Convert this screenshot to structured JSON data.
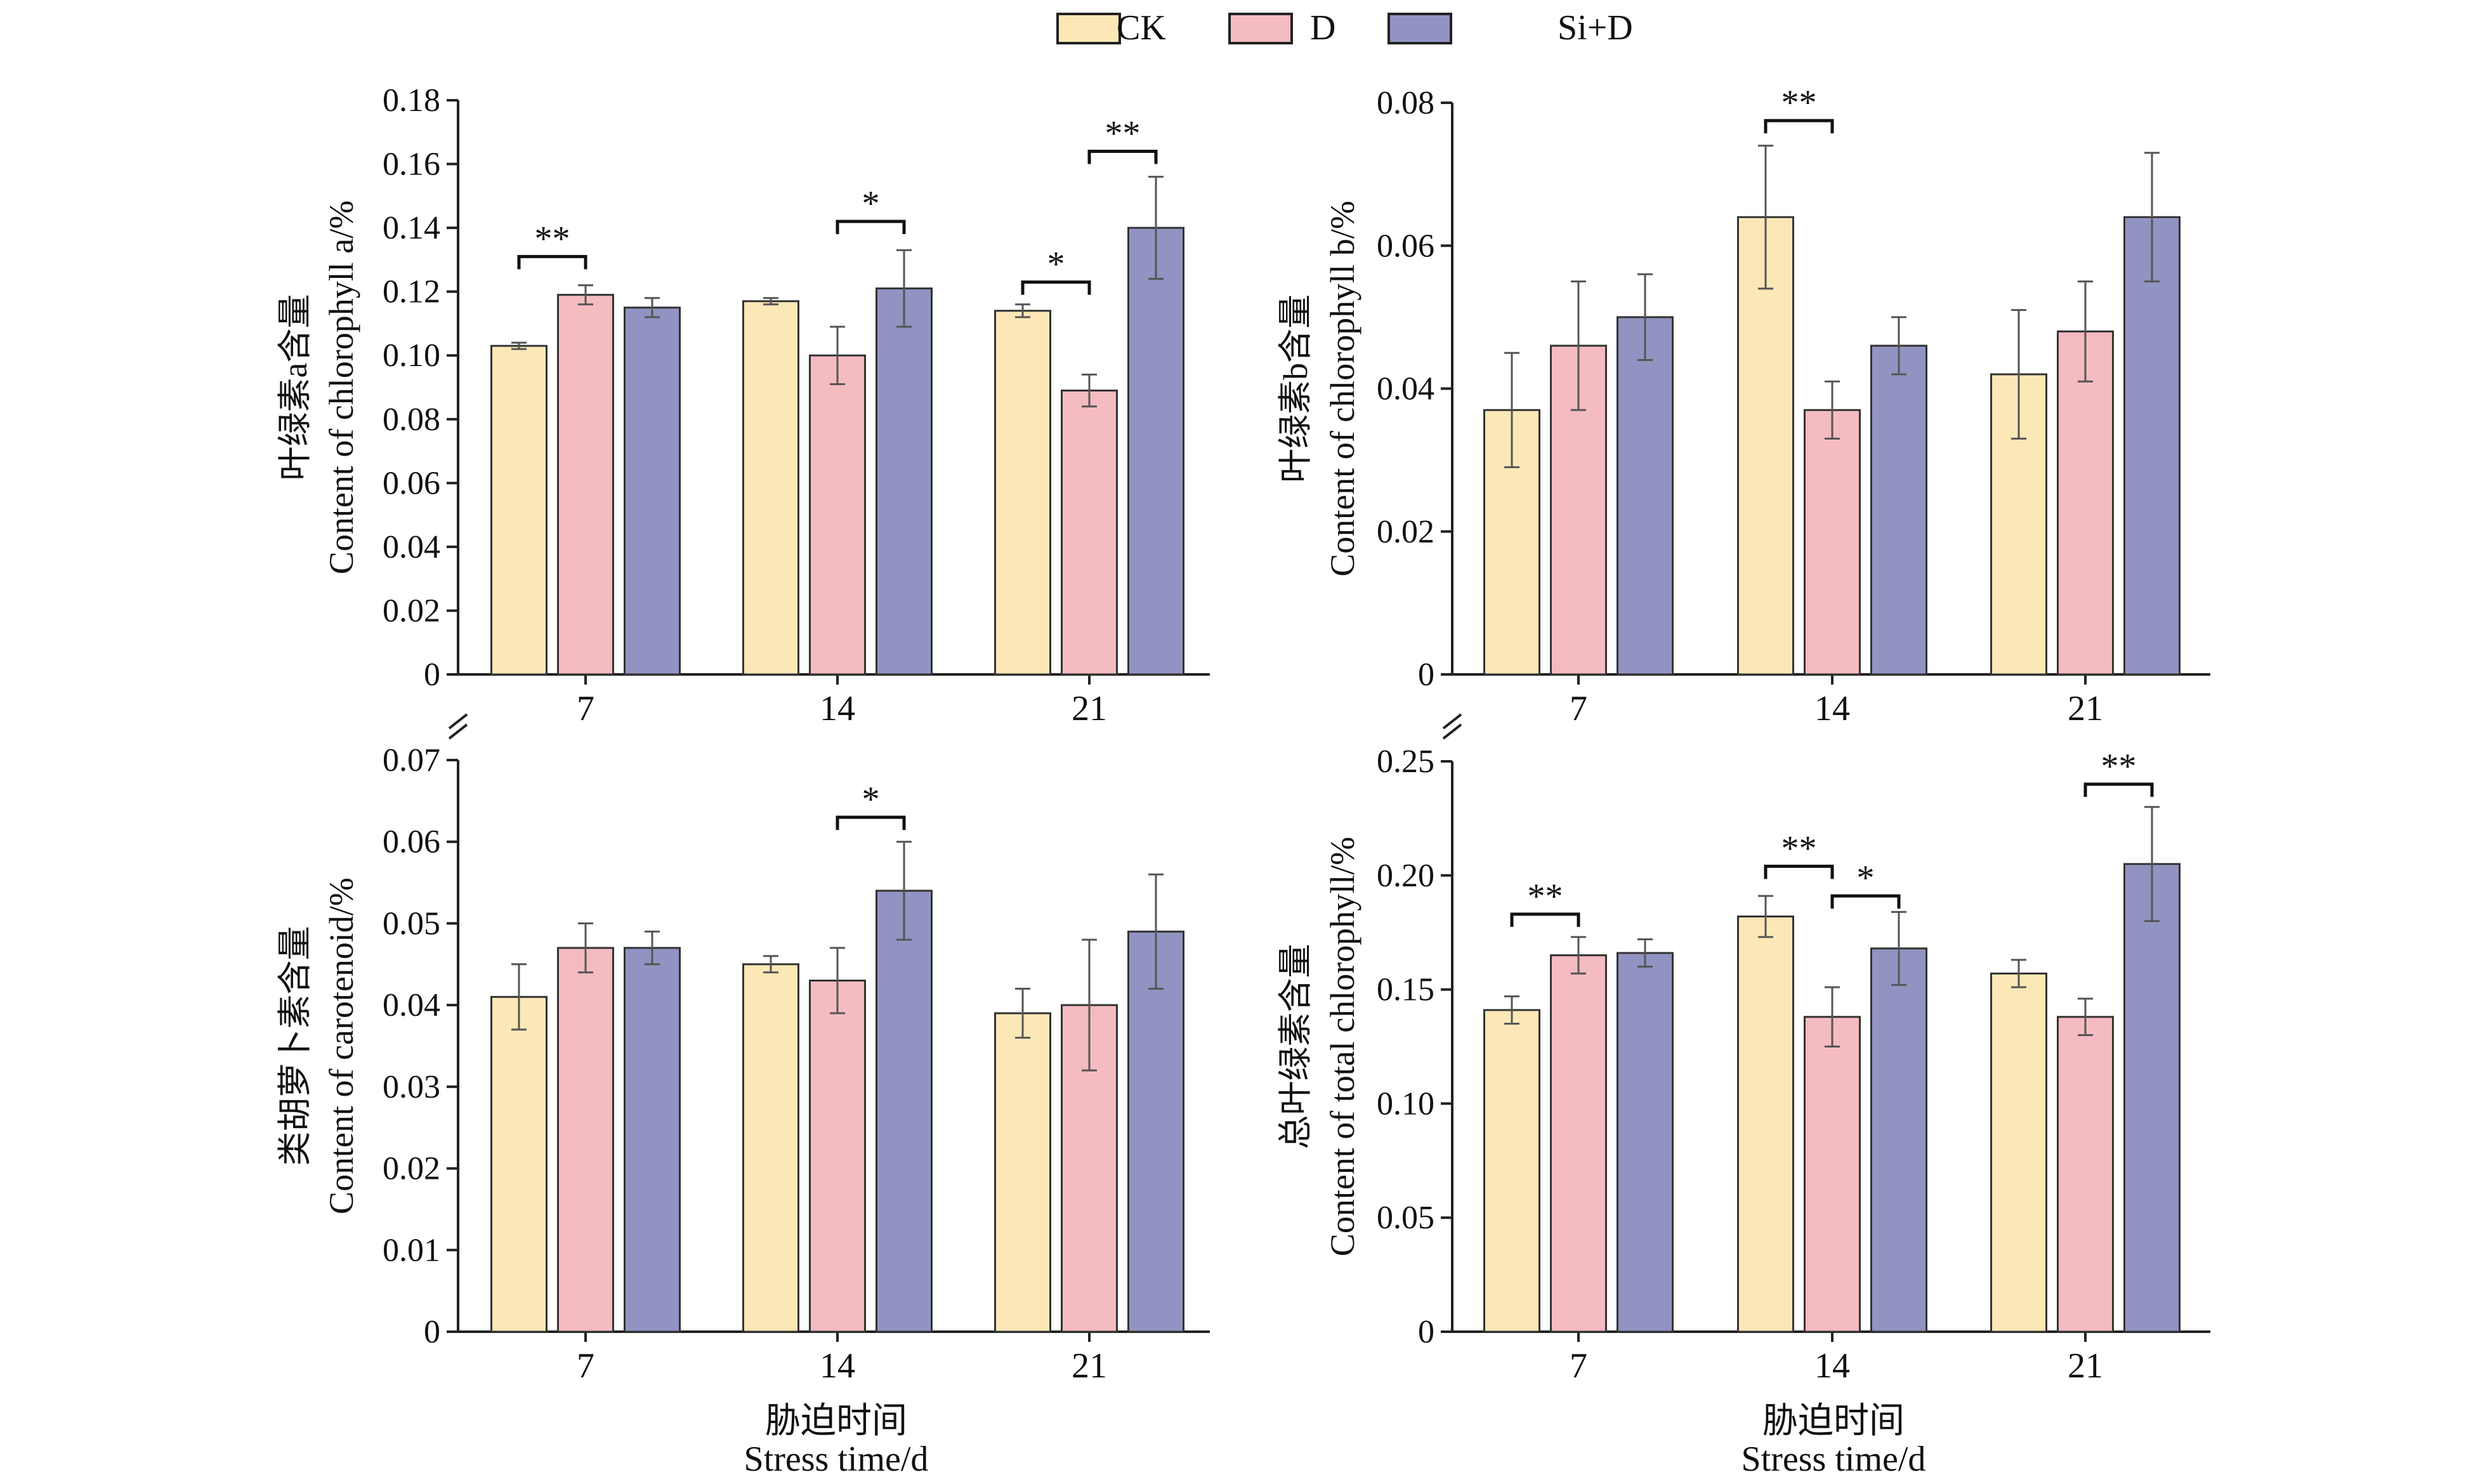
{
  "legend": {
    "items": [
      {
        "label": "CK",
        "color": "#FCE8B7"
      },
      {
        "label": "D",
        "color": "#F4BBC0"
      },
      {
        "label": "Si+D",
        "color": "#9194C2"
      }
    ]
  },
  "x_axis": {
    "label_cn": "胁迫时间",
    "label_en": "Stress time/d"
  },
  "chart_data": [
    {
      "type": "bar",
      "ylabel_cn": "叶绿素a含量",
      "ylabel_en": "Content of chlorophyll a/%",
      "ylim": [
        0,
        0.18
      ],
      "yticks": [
        0,
        0.02,
        0.04,
        0.06,
        0.08,
        0.1,
        0.12,
        0.14,
        0.16,
        0.18
      ],
      "ytick_labels": [
        "0",
        "0.02",
        "0.04",
        "0.06",
        "0.08",
        "0.10",
        "0.12",
        "0.14",
        "0.16",
        "0.18"
      ],
      "categories": [
        "7",
        "14",
        "21"
      ],
      "series": [
        {
          "name": "CK",
          "values": [
            0.103,
            0.117,
            0.114
          ],
          "errors": [
            0.001,
            0.001,
            0.002
          ]
        },
        {
          "name": "D",
          "values": [
            0.119,
            0.1,
            0.089
          ],
          "errors": [
            0.003,
            0.009,
            0.005
          ]
        },
        {
          "name": "Si+D",
          "values": [
            0.115,
            0.121,
            0.14
          ],
          "errors": [
            0.003,
            0.012,
            0.016
          ]
        }
      ],
      "significance": [
        {
          "category": 0,
          "from": 0,
          "to": 1,
          "label": "**",
          "height": 0.131
        },
        {
          "category": 1,
          "from": 1,
          "to": 2,
          "label": "*",
          "height": 0.142
        },
        {
          "category": 2,
          "from": 0,
          "to": 1,
          "label": "*",
          "height": 0.123
        },
        {
          "category": 2,
          "from": 1,
          "to": 2,
          "label": "**",
          "height": 0.164
        }
      ]
    },
    {
      "type": "bar",
      "ylabel_cn": "叶绿素b含量",
      "ylabel_en": "Content of chlorophyll b/%",
      "ylim": [
        0,
        0.08
      ],
      "yticks": [
        0,
        0.02,
        0.04,
        0.06,
        0.08
      ],
      "ytick_labels": [
        "0",
        "0.02",
        "0.04",
        "0.06",
        "0.08"
      ],
      "categories": [
        "7",
        "14",
        "21"
      ],
      "series": [
        {
          "name": "CK",
          "values": [
            0.037,
            0.064,
            0.042
          ],
          "errors": [
            0.008,
            0.01,
            0.009
          ]
        },
        {
          "name": "D",
          "values": [
            0.046,
            0.037,
            0.048
          ],
          "errors": [
            0.009,
            0.004,
            0.007
          ]
        },
        {
          "name": "Si+D",
          "values": [
            0.05,
            0.046,
            0.064
          ],
          "errors": [
            0.006,
            0.004,
            0.009
          ]
        }
      ],
      "significance": [
        {
          "category": 1,
          "from": 0,
          "to": 1,
          "label": "**",
          "height": 0.0775
        }
      ]
    },
    {
      "type": "bar",
      "ylabel_cn": "类胡萝卜素含量",
      "ylabel_en": "Content of carotenoid/%",
      "ylim": [
        0,
        0.07
      ],
      "yticks": [
        0,
        0.01,
        0.02,
        0.03,
        0.04,
        0.05,
        0.06,
        0.07
      ],
      "ytick_labels": [
        "0",
        "0.01",
        "0.02",
        "0.03",
        "0.04",
        "0.05",
        "0.06",
        "0.07"
      ],
      "categories": [
        "7",
        "14",
        "21"
      ],
      "series": [
        {
          "name": "CK",
          "values": [
            0.041,
            0.045,
            0.039
          ],
          "errors": [
            0.004,
            0.001,
            0.003
          ]
        },
        {
          "name": "D",
          "values": [
            0.047,
            0.043,
            0.04
          ],
          "errors": [
            0.003,
            0.004,
            0.008
          ]
        },
        {
          "name": "Si+D",
          "values": [
            0.047,
            0.054,
            0.049
          ],
          "errors": [
            0.002,
            0.006,
            0.007
          ]
        }
      ],
      "significance": [
        {
          "category": 1,
          "from": 1,
          "to": 2,
          "label": "*",
          "height": 0.063
        }
      ]
    },
    {
      "type": "bar",
      "ylabel_cn": "总叶绿素含量",
      "ylabel_en": "Content of total chlorophyll/%",
      "ylim": [
        0,
        0.25
      ],
      "yticks": [
        0,
        0.05,
        0.1,
        0.15,
        0.2,
        0.25
      ],
      "ytick_labels": [
        "0",
        "0.05",
        "0.10",
        "0.15",
        "0.20",
        "0.25"
      ],
      "categories": [
        "7",
        "14",
        "21"
      ],
      "series": [
        {
          "name": "CK",
          "values": [
            0.141,
            0.182,
            0.157
          ],
          "errors": [
            0.006,
            0.009,
            0.006
          ]
        },
        {
          "name": "D",
          "values": [
            0.165,
            0.138,
            0.138
          ],
          "errors": [
            0.008,
            0.013,
            0.008
          ]
        },
        {
          "name": "Si+D",
          "values": [
            0.166,
            0.168,
            0.205
          ],
          "errors": [
            0.006,
            0.016,
            0.025
          ]
        }
      ],
      "significance": [
        {
          "category": 0,
          "from": 0,
          "to": 1,
          "label": "**",
          "height": 0.183
        },
        {
          "category": 1,
          "from": 0,
          "to": 1,
          "label": "**",
          "height": 0.204
        },
        {
          "category": 1,
          "from": 1,
          "to": 2,
          "label": "*",
          "height": 0.191
        },
        {
          "category": 2,
          "from": 1,
          "to": 2,
          "label": "**",
          "height": 0.24
        }
      ]
    }
  ]
}
